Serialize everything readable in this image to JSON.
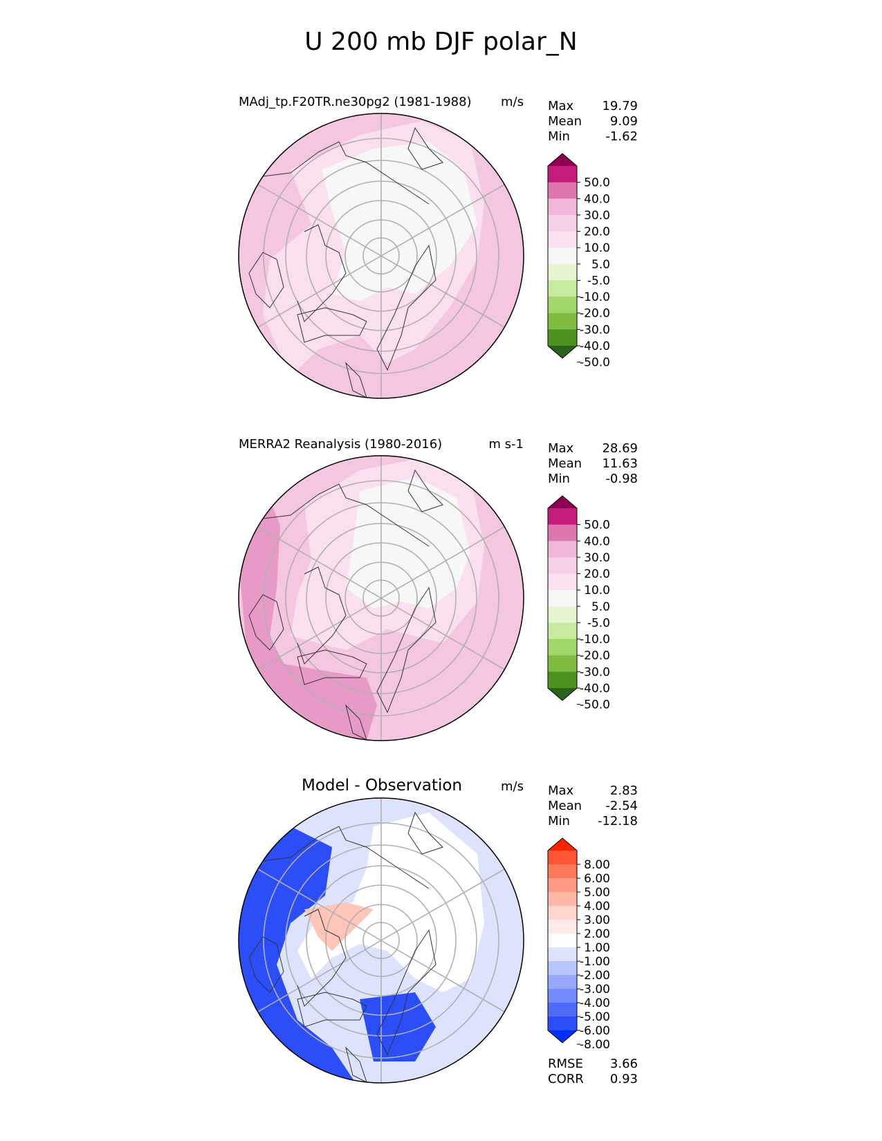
{
  "figure": {
    "title": "U 200 mb DJF polar_N"
  },
  "panels": [
    {
      "title": "MAdj_tp.F20TR.ne30pg2 (1981-1988)",
      "units": "m/s",
      "stats": {
        "Max": "19.79",
        "Mean": "9.09",
        "Min": "-1.62"
      },
      "colorbar": {
        "labels": [
          "50.0",
          "40.0",
          "30.0",
          "20.0",
          "10.0",
          "5.0",
          "-5.0",
          "-10.0",
          "-20.0",
          "-30.0",
          "-40.0",
          "-50.0"
        ],
        "colors": [
          "#8e0152",
          "#c51b7d",
          "#de77ae",
          "#f1b6da",
          "#f7cfe6",
          "#fde0ef",
          "#f7f7f7",
          "#e6f5d0",
          "#c7e9a0",
          "#a1d76a",
          "#7fbc41",
          "#4d9221",
          "#276419"
        ]
      },
      "map_fill": {
        "outer": "#f4c6df",
        "mid": "#fae0ee",
        "center": "#f7f7f7"
      }
    },
    {
      "title": "MERRA2 Reanalysis (1980-2016)",
      "units": "m s-1",
      "stats": {
        "Max": "28.69",
        "Mean": "11.63",
        "Min": "-0.98"
      },
      "colorbar": {
        "labels": [
          "50.0",
          "40.0",
          "30.0",
          "20.0",
          "10.0",
          "5.0",
          "-5.0",
          "-10.0",
          "-20.0",
          "-30.0",
          "-40.0",
          "-50.0"
        ],
        "colors": [
          "#8e0152",
          "#c51b7d",
          "#de77ae",
          "#f1b6da",
          "#f7cfe6",
          "#fde0ef",
          "#f7f7f7",
          "#e6f5d0",
          "#c7e9a0",
          "#a1d76a",
          "#7fbc41",
          "#4d9221",
          "#276419"
        ]
      },
      "map_fill": {
        "outer": "#f4c6df",
        "mid": "#fae0ee",
        "center": "#f7f7f7",
        "jet": "#e89ac7"
      }
    },
    {
      "title": "Model - Observation",
      "units": "m/s",
      "stats": {
        "Max": "2.83",
        "Mean": "-2.54",
        "Min": "-12.18"
      },
      "colorbar": {
        "labels": [
          "8.00",
          "6.00",
          "5.00",
          "4.00",
          "3.00",
          "2.00",
          "1.00",
          "-1.00",
          "-2.00",
          "-3.00",
          "-4.00",
          "-5.00",
          "-6.00",
          "-8.00"
        ],
        "colors": [
          "#ff2200",
          "#ff5533",
          "#ff7a5c",
          "#ff9a85",
          "#ffb7a8",
          "#ffd4cc",
          "#ffecea",
          "#ffffff",
          "#dde3fc",
          "#b9c6fb",
          "#96a8fa",
          "#728afa",
          "#4f6cf9",
          "#2b4ef8",
          "#0030f7"
        ]
      },
      "map_fill": {
        "outer": "#dde3fc",
        "center": "#ffffff",
        "strong": "#2b4ef8",
        "warm": "#ffc5b8"
      }
    }
  ],
  "footer": {
    "RMSE": "3.66",
    "CORR": "0.93"
  },
  "chart_data": [
    {
      "type": "heatmap",
      "projection": "north polar stereographic",
      "title": "MAdj_tp.F20TR.ne30pg2 (1981-1988)",
      "variable": "U 200 mb DJF",
      "units": "m/s",
      "max": 19.79,
      "mean": 9.09,
      "min": -1.62,
      "levels": [
        -50,
        -40,
        -30,
        -20,
        -10,
        -5,
        5,
        10,
        20,
        30,
        40,
        50
      ]
    },
    {
      "type": "heatmap",
      "projection": "north polar stereographic",
      "title": "MERRA2 Reanalysis (1980-2016)",
      "variable": "U 200 mb DJF",
      "units": "m s-1",
      "max": 28.69,
      "mean": 11.63,
      "min": -0.98,
      "levels": [
        -50,
        -40,
        -30,
        -20,
        -10,
        -5,
        5,
        10,
        20,
        30,
        40,
        50
      ]
    },
    {
      "type": "heatmap",
      "projection": "north polar stereographic",
      "title": "Model - Observation",
      "units": "m/s",
      "max": 2.83,
      "mean": -2.54,
      "min": -12.18,
      "levels": [
        -8,
        -6,
        -5,
        -4,
        -3,
        -2,
        -1,
        1,
        2,
        3,
        4,
        5,
        6,
        8
      ],
      "rmse": 3.66,
      "corr": 0.93
    }
  ]
}
